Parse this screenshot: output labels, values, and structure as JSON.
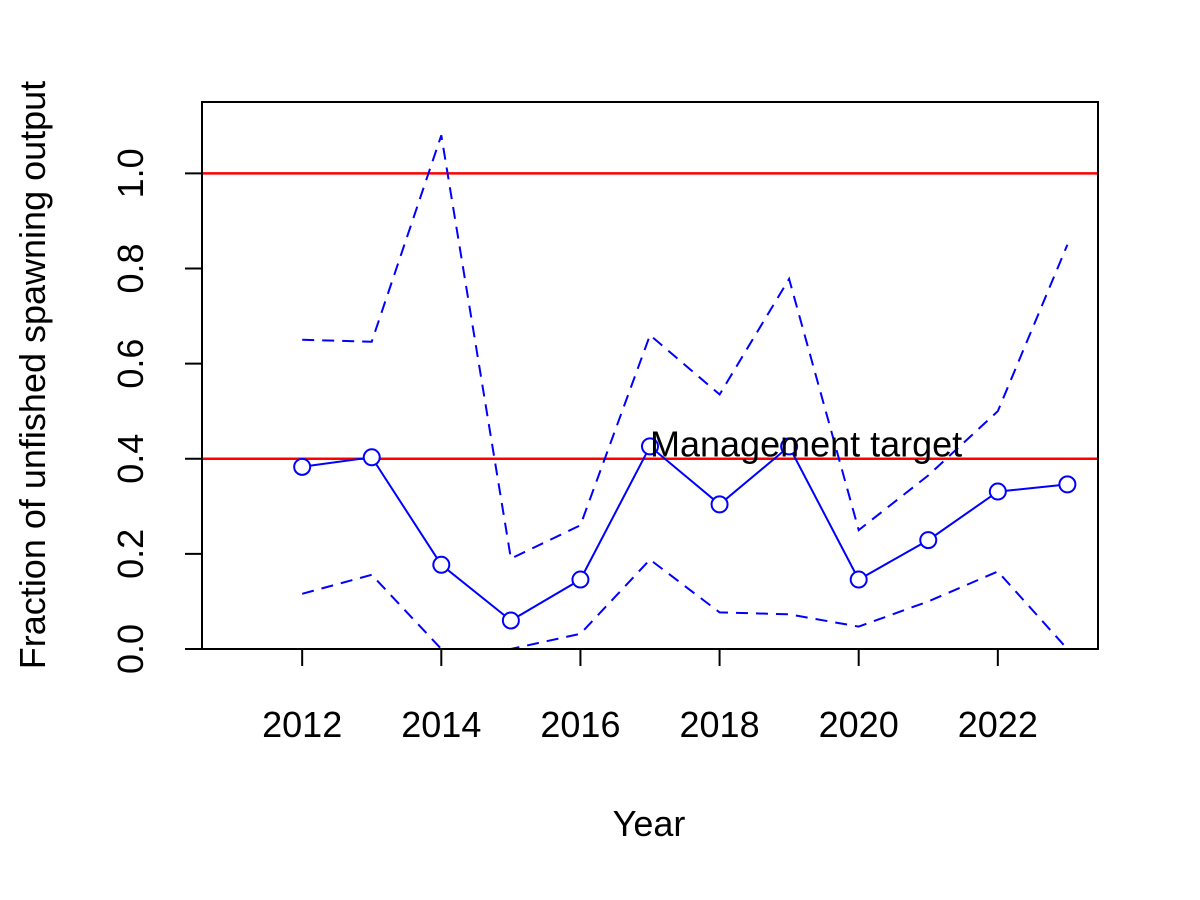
{
  "chart_data": {
    "type": "line",
    "xlabel": "Year",
    "ylabel": "Fraction of unfished spawning output",
    "xlim": [
      2010.56,
      2023.44
    ],
    "ylim": [
      0,
      1.15
    ],
    "x_ticks": [
      2012,
      2014,
      2016,
      2018,
      2020,
      2022
    ],
    "y_ticks": [
      "0.0",
      "0.2",
      "0.4",
      "0.6",
      "0.8",
      "1.0"
    ],
    "grid": false,
    "x": [
      2012,
      2013,
      2014,
      2015,
      2016,
      2017,
      2018,
      2019,
      2020,
      2021,
      2022,
      2023
    ],
    "series": [
      {
        "role": "estimate",
        "style": "solid-with-circles",
        "color": "#0000ff",
        "values": [
          0.383,
          0.403,
          0.177,
          0.06,
          0.146,
          0.426,
          0.304,
          0.426,
          0.146,
          0.229,
          0.331,
          0.346
        ]
      },
      {
        "role": "upper-interval",
        "style": "dashed",
        "color": "#0000ff",
        "values": [
          0.65,
          0.646,
          1.08,
          0.19,
          0.26,
          0.66,
          0.535,
          0.778,
          0.25,
          0.365,
          0.5,
          0.85
        ]
      },
      {
        "role": "lower-interval",
        "style": "dashed",
        "color": "#0000ff",
        "values": [
          0.116,
          0.156,
          0.0,
          0.0,
          0.032,
          0.188,
          0.077,
          0.073,
          0.047,
          0.1,
          0.163,
          0.0
        ]
      }
    ],
    "reference_lines": [
      {
        "y": 1.0,
        "color": "#ff0000",
        "label": ""
      },
      {
        "y": 0.4,
        "color": "#ff0000",
        "label": "Management target",
        "label_x": 2017.0
      }
    ]
  }
}
